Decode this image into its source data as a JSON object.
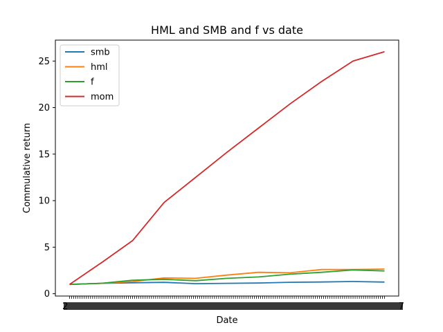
{
  "chart_data": {
    "type": "line",
    "title": "HML and SMB and f vs date",
    "xlabel": "Date",
    "ylabel": "Commulative return",
    "ylim": [
      -0.25,
      27.25
    ],
    "yticks": [
      0,
      5,
      10,
      15,
      20,
      25
    ],
    "x_start_label": "2",
    "x_end_label": "7",
    "grid": false,
    "legend_position": "top-left",
    "x": [
      0,
      10,
      20,
      30,
      40,
      50,
      60,
      70,
      80,
      90,
      100
    ],
    "series": [
      {
        "name": "smb",
        "color": "#1f77b4",
        "values": [
          1.0,
          1.12,
          1.18,
          1.22,
          1.08,
          1.12,
          1.15,
          1.23,
          1.26,
          1.31,
          1.25
        ]
      },
      {
        "name": "hml",
        "color": "#ff7f0e",
        "values": [
          1.0,
          1.12,
          1.3,
          1.7,
          1.65,
          2.0,
          2.3,
          2.25,
          2.6,
          2.6,
          2.65
        ]
      },
      {
        "name": "f",
        "color": "#2ca02c",
        "values": [
          1.0,
          1.12,
          1.45,
          1.55,
          1.4,
          1.65,
          1.8,
          2.1,
          2.3,
          2.55,
          2.45
        ]
      },
      {
        "name": "mom",
        "color": "#d62728",
        "values": [
          1.0,
          3.3,
          5.7,
          9.8,
          12.5,
          15.2,
          17.8,
          20.4,
          22.8,
          25.0,
          26.0
        ]
      }
    ]
  }
}
